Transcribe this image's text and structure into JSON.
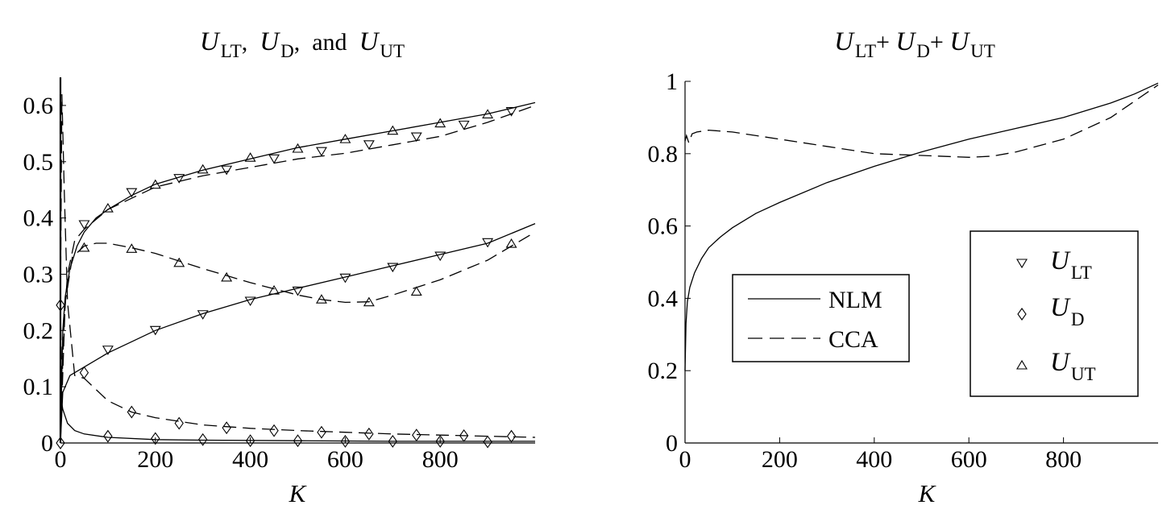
{
  "chart_data": [
    {
      "type": "line",
      "title_parts": [
        "U",
        "LT",
        ",  ",
        "U",
        "D",
        ",  and  ",
        "U",
        "UT"
      ],
      "xlabel": "K",
      "ylabel": "",
      "xlim": [
        0,
        1000
      ],
      "ylim": [
        0,
        0.65
      ],
      "xticks": [
        0,
        200,
        400,
        600,
        800
      ],
      "yticks": [
        0,
        0.1,
        0.2,
        0.3,
        0.4,
        0.5,
        0.6
      ],
      "xtick_labels": [
        "0",
        "200",
        "400",
        "600",
        "800"
      ],
      "ytick_labels": [
        "0",
        "0.1",
        "0.2",
        "0.3",
        "0.4",
        "0.5",
        "0.6"
      ],
      "series": [
        {
          "name": "NLM U_LT",
          "method": "NLM",
          "quantity": "U_LT",
          "style": "solid",
          "marker": "triangle-down",
          "x": [
            0,
            5,
            20,
            50,
            100,
            150,
            200,
            300,
            400,
            500,
            600,
            700,
            800,
            900,
            1000
          ],
          "y": [
            0.0,
            0.09,
            0.12,
            0.135,
            0.16,
            0.18,
            0.2,
            0.23,
            0.255,
            0.275,
            0.295,
            0.315,
            0.335,
            0.355,
            0.39
          ],
          "marker_x": [
            100,
            200,
            300,
            400,
            500,
            600,
            700,
            800,
            900
          ],
          "marker_y": [
            0.165,
            0.2,
            0.228,
            0.252,
            0.27,
            0.293,
            0.312,
            0.332,
            0.356
          ]
        },
        {
          "name": "CCA U_LT",
          "method": "CCA",
          "quantity": "U_LT",
          "style": "dashed",
          "marker": "triangle-down",
          "x": [
            0,
            3,
            8,
            15,
            30,
            50,
            100,
            200,
            300,
            400,
            500,
            600,
            700,
            800,
            900,
            1000
          ],
          "y": [
            0.24,
            0.1,
            0.22,
            0.3,
            0.36,
            0.38,
            0.415,
            0.455,
            0.475,
            0.49,
            0.505,
            0.515,
            0.53,
            0.545,
            0.57,
            0.6
          ],
          "marker_x": [
            50,
            150,
            250,
            350,
            450,
            550,
            650,
            750,
            850,
            950
          ],
          "marker_y": [
            0.388,
            0.445,
            0.47,
            0.485,
            0.505,
            0.518,
            0.53,
            0.544,
            0.565,
            0.589
          ]
        },
        {
          "name": "NLM U_D",
          "method": "NLM",
          "quantity": "U_D",
          "style": "solid",
          "marker": "diamond",
          "x": [
            0,
            5,
            15,
            30,
            50,
            100,
            200,
            300,
            500,
            700,
            1000
          ],
          "y": [
            0.085,
            0.06,
            0.035,
            0.022,
            0.016,
            0.01,
            0.006,
            0.005,
            0.004,
            0.003,
            0.003
          ],
          "marker_x": [
            0,
            100,
            200,
            300,
            400,
            500,
            600,
            700,
            800,
            900
          ],
          "marker_y": [
            0.0,
            0.012,
            0.008,
            0.006,
            0.004,
            0.004,
            0.003,
            0.003,
            0.003,
            0.002
          ]
        },
        {
          "name": "CCA U_D",
          "method": "CCA",
          "quantity": "U_D",
          "style": "dashed",
          "marker": "diamond",
          "x": [
            0,
            3,
            8,
            15,
            30,
            50,
            100,
            150,
            200,
            300,
            400,
            500,
            600,
            700,
            800,
            900,
            1000
          ],
          "y": [
            0.24,
            0.62,
            0.45,
            0.25,
            0.12,
            0.115,
            0.075,
            0.055,
            0.045,
            0.032,
            0.026,
            0.022,
            0.019,
            0.016,
            0.014,
            0.012,
            0.01
          ],
          "marker_x": [
            0,
            50,
            150,
            250,
            350,
            450,
            550,
            650,
            750,
            850,
            950
          ],
          "marker_y": [
            0.245,
            0.125,
            0.055,
            0.035,
            0.027,
            0.022,
            0.019,
            0.016,
            0.014,
            0.013,
            0.012
          ]
        },
        {
          "name": "NLM U_UT",
          "method": "NLM",
          "quantity": "U_UT",
          "style": "solid",
          "marker": "triangle-up",
          "x": [
            0,
            5,
            10,
            20,
            35,
            50,
            75,
            100,
            150,
            200,
            300,
            400,
            500,
            600,
            700,
            800,
            900,
            1000
          ],
          "y": [
            0.0,
            0.2,
            0.26,
            0.31,
            0.35,
            0.375,
            0.4,
            0.415,
            0.44,
            0.46,
            0.485,
            0.505,
            0.525,
            0.54,
            0.555,
            0.57,
            0.585,
            0.605
          ],
          "marker_x": [
            100,
            200,
            300,
            400,
            500,
            600,
            700,
            800,
            900
          ],
          "marker_y": [
            0.418,
            0.46,
            0.487,
            0.508,
            0.524,
            0.541,
            0.556,
            0.569,
            0.585
          ]
        },
        {
          "name": "CCA U_UT",
          "method": "CCA",
          "quantity": "U_UT",
          "style": "dashed",
          "marker": "triangle-up",
          "x": [
            0,
            10,
            25,
            50,
            75,
            100,
            150,
            200,
            300,
            400,
            500,
            550,
            600,
            650,
            700,
            800,
            900,
            1000
          ],
          "y": [
            0.0,
            0.25,
            0.33,
            0.35,
            0.355,
            0.355,
            0.347,
            0.337,
            0.31,
            0.285,
            0.263,
            0.255,
            0.25,
            0.251,
            0.263,
            0.29,
            0.325,
            0.375
          ],
          "marker_x": [
            50,
            150,
            250,
            350,
            450,
            550,
            650,
            750,
            950
          ],
          "marker_y": [
            0.348,
            0.346,
            0.321,
            0.295,
            0.272,
            0.256,
            0.251,
            0.27,
            0.355
          ]
        }
      ]
    },
    {
      "type": "line",
      "title_parts": [
        "U",
        "LT",
        "+ ",
        "U",
        "D",
        "+ ",
        "U",
        "UT"
      ],
      "xlabel": "K",
      "ylabel": "",
      "xlim": [
        0,
        1000
      ],
      "ylim": [
        0,
        1
      ],
      "xticks": [
        0,
        200,
        400,
        600,
        800
      ],
      "yticks": [
        0,
        0.2,
        0.4,
        0.6,
        0.8,
        1
      ],
      "xtick_labels": [
        "0",
        "200",
        "400",
        "600",
        "800"
      ],
      "ytick_labels": [
        "0",
        "0.2",
        "0.4",
        "0.6",
        "0.8",
        "1"
      ],
      "series": [
        {
          "name": "NLM",
          "style": "solid",
          "x": [
            0,
            2,
            5,
            10,
            20,
            35,
            50,
            75,
            100,
            150,
            200,
            300,
            400,
            500,
            600,
            700,
            800,
            900,
            950,
            1000
          ],
          "y": [
            0.2,
            0.33,
            0.39,
            0.43,
            0.47,
            0.51,
            0.54,
            0.57,
            0.595,
            0.635,
            0.665,
            0.72,
            0.765,
            0.805,
            0.84,
            0.87,
            0.9,
            0.94,
            0.965,
            0.995
          ],
          "marker_x": [],
          "marker_y": []
        },
        {
          "name": "CCA",
          "style": "dashed",
          "x": [
            0,
            3,
            8,
            15,
            25,
            50,
            100,
            200,
            300,
            400,
            500,
            600,
            650,
            700,
            800,
            900,
            1000
          ],
          "y": [
            0.835,
            0.85,
            0.83,
            0.855,
            0.86,
            0.865,
            0.86,
            0.84,
            0.82,
            0.8,
            0.795,
            0.79,
            0.793,
            0.805,
            0.84,
            0.9,
            0.99
          ],
          "marker_x": [],
          "marker_y": []
        }
      ]
    }
  ],
  "legend_lines": {
    "items": [
      {
        "label": "NLM",
        "style": "solid"
      },
      {
        "label": "CCA",
        "style": "dashed"
      }
    ]
  },
  "legend_markers": {
    "items": [
      {
        "marker": "triangle-down",
        "letter": "U",
        "sub": "LT"
      },
      {
        "marker": "diamond",
        "letter": "U",
        "sub": "D"
      },
      {
        "marker": "triangle-up",
        "letter": "U",
        "sub": "UT"
      }
    ]
  }
}
